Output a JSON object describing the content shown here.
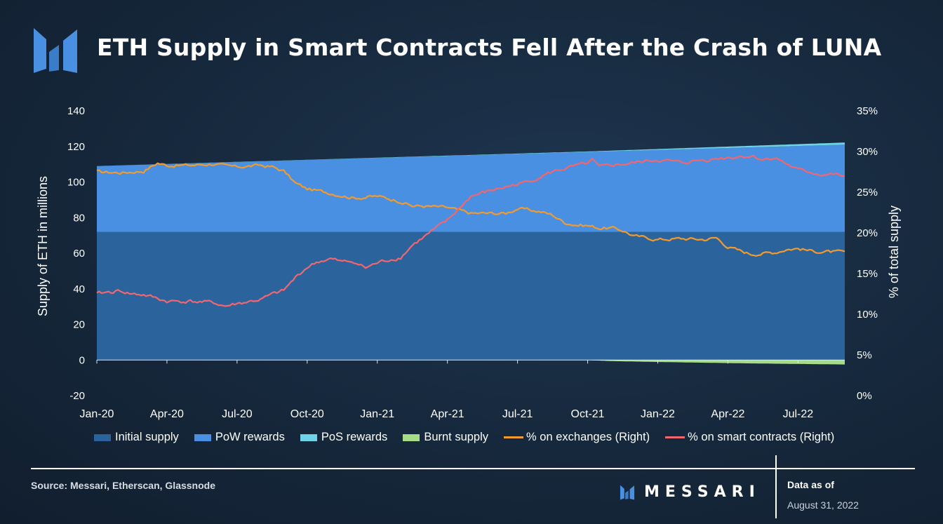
{
  "header": {
    "title": "ETH Supply in Smart Contracts Fell After the Crash of LUNA"
  },
  "footer": {
    "source": "Source: Messari, Etherscan, Glassnode",
    "brand": "MESSARI",
    "data_as_of_label": "Data as of",
    "data_as_of_date": "August 31, 2022"
  },
  "colors": {
    "initial": "#2b639c",
    "pow": "#4a90e2",
    "pos": "#6fd3e8",
    "burnt": "#a6dc88",
    "exchanges": "#f29a2e",
    "contracts": "#f2666f",
    "logo": "#4a90e2"
  },
  "chart_data": {
    "type": "area",
    "title": "ETH Supply in Smart Contracts Fell After the Crash of LUNA",
    "ylabel": "Supply of ETH in millions",
    "ylabel_right": "% of total supply",
    "ylim": [
      -20,
      140
    ],
    "yticks": [
      "140",
      "120",
      "100",
      "80",
      "60",
      "40",
      "20",
      "0",
      "-20"
    ],
    "ylim_right": [
      0,
      35
    ],
    "yticks_right": [
      "35%",
      "30%",
      "25%",
      "20%",
      "15%",
      "10%",
      "5%",
      "0%"
    ],
    "x_start": "2020-01-01",
    "x_end": "2022-08-31",
    "xlabels": [
      "Jan-20",
      "Apr-20",
      "Jul-20",
      "Oct-20",
      "Jan-21",
      "Apr-21",
      "Jul-21",
      "Oct-21",
      "Jan-22",
      "Apr-22",
      "Jul-22"
    ],
    "legend": [
      "Initial supply",
      "PoW rewards",
      "PoS rewards",
      "Burnt supply",
      "% on exchanges (Right)",
      "% on smart contracts (Right)"
    ],
    "series": [
      {
        "name": "Initial supply",
        "kind": "area",
        "axis": "left",
        "x": [
          0,
          32
        ],
        "values": [
          72,
          72
        ]
      },
      {
        "name": "PoW rewards",
        "kind": "area",
        "axis": "left",
        "x": [
          0,
          32
        ],
        "values": [
          37,
          49
        ]
      },
      {
        "name": "PoS rewards",
        "kind": "area",
        "axis": "left",
        "x": [
          0,
          21,
          32
        ],
        "values": [
          0,
          0.3,
          1.2
        ]
      },
      {
        "name": "Burnt supply",
        "kind": "area",
        "axis": "left",
        "x": [
          0,
          21,
          22,
          24,
          26,
          28,
          30,
          32
        ],
        "values": [
          0,
          0,
          -0.6,
          -1.1,
          -1.5,
          -1.9,
          -2.2,
          -2.5
        ]
      },
      {
        "name": "% on exchanges (Right)",
        "kind": "line",
        "axis": "right",
        "x": [
          0,
          1,
          2,
          2.6,
          3,
          4,
          5,
          5.5,
          6,
          7,
          7.5,
          8,
          8.5,
          9,
          10,
          11,
          12,
          13,
          13.5,
          14,
          15,
          16,
          17,
          17.5,
          18,
          19,
          19.5,
          20,
          20.5,
          21,
          21.5,
          22,
          22.5,
          23,
          24,
          25,
          26,
          26.5,
          27,
          27.5,
          28,
          29,
          29.5,
          30,
          30.5,
          31,
          32
        ],
        "values": [
          27.5,
          27.4,
          27.6,
          28.6,
          28.3,
          28.3,
          28.5,
          28.2,
          28.1,
          28.3,
          28.1,
          27.6,
          26.1,
          25.4,
          24.9,
          24.3,
          24.5,
          23.9,
          23.3,
          23.3,
          23.1,
          22.4,
          22.4,
          22.4,
          23.0,
          22.6,
          22.2,
          21.3,
          21.0,
          20.9,
          20.6,
          20.6,
          20.3,
          19.6,
          19.2,
          19.3,
          19.2,
          19.4,
          18.3,
          17.8,
          17.4,
          17.6,
          18.0,
          18.1,
          17.8,
          17.7,
          17.6
        ]
      },
      {
        "name": "% on smart contracts (Right)",
        "kind": "line",
        "axis": "right",
        "x": [
          0,
          1,
          1.5,
          2,
          3,
          4,
          5,
          5.5,
          6,
          7,
          7.5,
          8,
          8.5,
          9,
          9.5,
          10,
          10.5,
          11,
          11.5,
          12,
          12.5,
          13,
          13.5,
          14,
          14.5,
          15,
          15.5,
          16,
          17,
          18,
          18.5,
          19,
          19.5,
          20,
          21,
          21.2,
          21.5,
          22,
          23,
          24,
          25,
          26,
          27,
          28,
          28.5,
          29,
          29.5,
          30,
          30.5,
          31,
          31.5,
          32
        ],
        "values": [
          12.5,
          12.9,
          12.5,
          12.4,
          11.6,
          11.6,
          11.4,
          11.0,
          11.3,
          11.8,
          12.4,
          12.9,
          14.5,
          15.8,
          16.5,
          16.8,
          16.4,
          16.5,
          15.7,
          16.3,
          16.7,
          17.0,
          18.5,
          19.5,
          20.5,
          21.5,
          23.0,
          24.5,
          25.3,
          26.0,
          26.3,
          27.0,
          27.5,
          27.9,
          28.5,
          28.9,
          28.0,
          28.3,
          28.6,
          29.0,
          28.6,
          29.0,
          29.3,
          29.5,
          29.0,
          29.3,
          28.5,
          27.7,
          27.5,
          27.2,
          27.2,
          26.9
        ]
      }
    ]
  }
}
